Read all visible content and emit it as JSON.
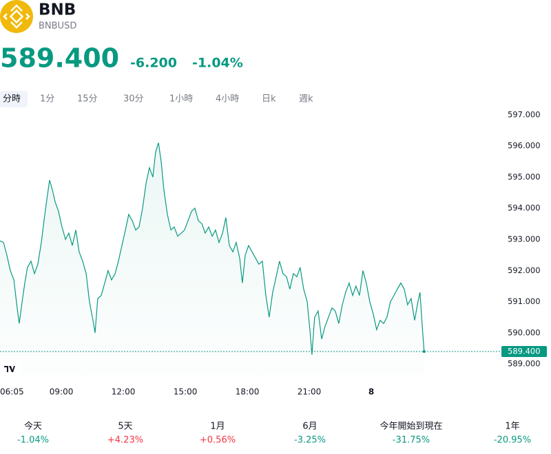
{
  "header": {
    "symbol": "BNB",
    "pair": "BNBUSD",
    "price": "589.400",
    "change": "-6.200",
    "change_pct": "-1.04%",
    "color": "#089981"
  },
  "tabs": [
    "分時",
    "1分",
    "15分",
    "30分",
    "1小時",
    "4小時",
    "日k",
    "週k"
  ],
  "chart_data": {
    "type": "line",
    "color": "#089981",
    "x": [
      6.03,
      6.2,
      6.36,
      6.53,
      6.7,
      6.86,
      6.96,
      7.1,
      7.23,
      7.36,
      7.53,
      7.7,
      7.86,
      8.03,
      8.16,
      8.3,
      8.43,
      8.56,
      8.7,
      8.86,
      9.03,
      9.2,
      9.36,
      9.53,
      9.7,
      9.86,
      10.03,
      10.2,
      10.36,
      10.53,
      10.63,
      10.76,
      10.93,
      11.1,
      11.26,
      11.43,
      11.6,
      11.76,
      11.93,
      12.1,
      12.26,
      12.43,
      12.6,
      12.76,
      12.93,
      13.1,
      13.26,
      13.43,
      13.56,
      13.7,
      13.83,
      13.96,
      14.13,
      14.3,
      14.46,
      14.63,
      14.8,
      14.96,
      15.13,
      15.3,
      15.46,
      15.63,
      15.8,
      15.96,
      16.13,
      16.3,
      16.46,
      16.63,
      16.8,
      16.96,
      17.13,
      17.3,
      17.46,
      17.63,
      17.76,
      17.9,
      18.06,
      18.23,
      18.4,
      18.56,
      18.73,
      18.9,
      19.06,
      19.23,
      19.4,
      19.56,
      19.73,
      19.9,
      20.06,
      20.23,
      20.4,
      20.56,
      20.73,
      20.9,
      21.03,
      21.13,
      21.26,
      21.43,
      21.6,
      21.76,
      21.93,
      22.1,
      22.26,
      22.43,
      22.6,
      22.76,
      22.93,
      23.1,
      23.26,
      23.43,
      23.6,
      23.76,
      23.93,
      24.1,
      24.26,
      24.43,
      24.6,
      24.76,
      24.93,
      25.1,
      25.26,
      25.43,
      25.6,
      25.76,
      25.93,
      26.1,
      26.26,
      26.36,
      26.46,
      26.56
    ],
    "values": [
      592.95,
      592.9,
      592.5,
      592.0,
      591.7,
      590.8,
      590.3,
      591.0,
      591.6,
      592.1,
      592.3,
      591.9,
      592.2,
      592.9,
      593.6,
      594.3,
      594.9,
      594.6,
      594.2,
      593.9,
      593.4,
      593.0,
      593.2,
      592.8,
      593.3,
      592.6,
      592.3,
      591.9,
      591.0,
      590.4,
      590.0,
      591.1,
      591.2,
      591.6,
      592.0,
      591.7,
      591.9,
      592.3,
      592.8,
      593.3,
      593.8,
      593.6,
      593.3,
      593.4,
      594.0,
      594.8,
      595.3,
      595.0,
      595.8,
      596.1,
      595.5,
      594.6,
      593.8,
      593.3,
      593.4,
      593.1,
      593.2,
      593.3,
      593.6,
      593.9,
      594.0,
      593.6,
      593.5,
      593.2,
      593.4,
      593.1,
      593.3,
      592.9,
      593.2,
      593.7,
      592.8,
      592.6,
      592.9,
      592.4,
      591.6,
      592.5,
      592.8,
      592.6,
      592.4,
      592.2,
      592.3,
      591.2,
      590.5,
      591.3,
      591.8,
      592.3,
      591.9,
      591.8,
      591.4,
      591.9,
      591.8,
      592.1,
      591.4,
      591.0,
      590.1,
      589.3,
      590.5,
      590.7,
      589.8,
      590.2,
      590.5,
      590.8,
      590.7,
      590.3,
      590.9,
      591.3,
      591.6,
      591.2,
      591.5,
      591.2,
      592.0,
      591.6,
      591.0,
      590.6,
      590.1,
      590.4,
      590.3,
      590.5,
      591.0,
      591.2,
      591.4,
      591.6,
      591.4,
      590.9,
      591.1,
      590.4,
      591.0,
      591.3,
      590.3,
      589.4
    ],
    "xlim": [
      6.03,
      30.3
    ],
    "ylim": [
      588.65,
      597.15
    ],
    "xticks": [
      {
        "value": 6.083,
        "label": "06:05"
      },
      {
        "value": 9,
        "label": "09:00"
      },
      {
        "value": 12,
        "label": "12:00"
      },
      {
        "value": 15,
        "label": "15:00"
      },
      {
        "value": 18,
        "label": "18:00"
      },
      {
        "value": 21,
        "label": "21:00"
      },
      {
        "value": 24,
        "label": "8"
      }
    ],
    "yticks": [
      {
        "value": 589,
        "label": "589.000"
      },
      {
        "value": 590,
        "label": "590.000"
      },
      {
        "value": 591,
        "label": "591.000"
      },
      {
        "value": 592,
        "label": "592.000"
      },
      {
        "value": 593,
        "label": "593.000"
      },
      {
        "value": 594,
        "label": "594.000"
      },
      {
        "value": 595,
        "label": "595.000"
      },
      {
        "value": 596,
        "label": "596.000"
      },
      {
        "value": 597,
        "label": "597.000"
      }
    ],
    "last_price": {
      "value": 589.4,
      "label": "589.400"
    }
  },
  "performance": [
    {
      "period": "今天",
      "value": "-1.04%",
      "color": "#089981"
    },
    {
      "period": "5天",
      "value": "+4.23%",
      "color": "#f23645"
    },
    {
      "period": "1月",
      "value": "+0.56%",
      "color": "#f23645"
    },
    {
      "period": "6月",
      "value": "-3.25%",
      "color": "#089981"
    },
    {
      "period": "今年開始到現在",
      "value": "-31.75%",
      "color": "#089981"
    },
    {
      "period": "1年",
      "value": "-20.95%",
      "color": "#089981"
    }
  ]
}
